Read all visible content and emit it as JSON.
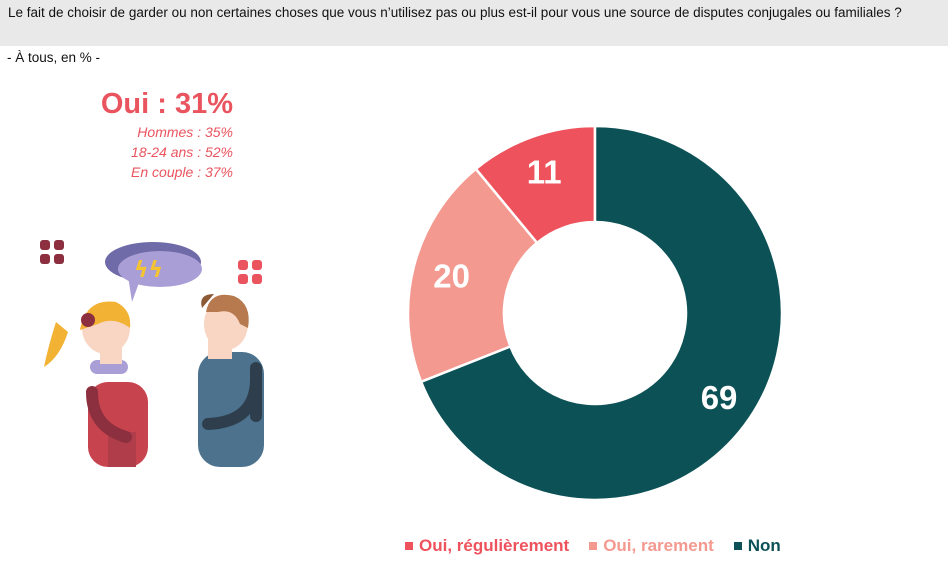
{
  "question": {
    "text": "Le fait de choisir de garder ou non certaines choses que vous n’utilisez pas ou plus est-il pour vous une source de disputes conjugales ou familiales ?",
    "base": "- À tous, en % -"
  },
  "highlight": {
    "main": "Oui : 31%",
    "details": [
      "Hommes  : 35%",
      "18-24 ans  : 52%",
      "En couple : 37%"
    ]
  },
  "illustration": {
    "icon": "couple-arguing-illustration"
  },
  "chart_data": {
    "type": "pie",
    "donut": true,
    "start_angle_deg": -90,
    "categories": [
      "Oui, régulièrement",
      "Oui, rarement",
      "Non"
    ],
    "values": [
      11,
      20,
      69
    ],
    "labels": [
      "11",
      "20",
      "69"
    ],
    "colors": [
      "#ee525d",
      "#f4998f",
      "#0c5156"
    ],
    "legend": "bottom",
    "legend_labels": [
      "Oui, régulièrement",
      "Oui, rarement",
      "Non"
    ]
  }
}
